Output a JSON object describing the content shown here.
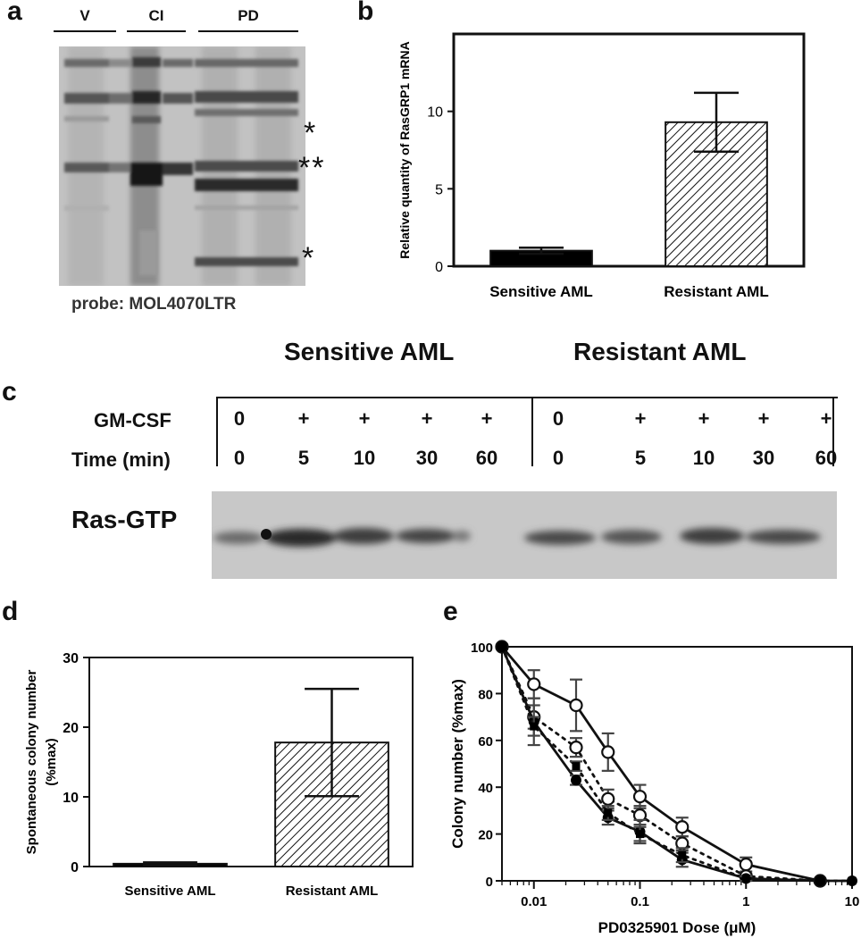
{
  "panels": {
    "a": {
      "letter": "a",
      "lane_groups": [
        "V",
        "CI",
        "PD"
      ],
      "asterisks": [
        "*",
        "**",
        "*"
      ],
      "caption": "probe: MOL4070LTR"
    },
    "c": {
      "letter": "c",
      "group_headers": [
        "Sensitive AML",
        "Resistant AML"
      ],
      "row1_label": "GM-CSF",
      "row1_values": [
        "0",
        "+",
        "+",
        "+",
        "+",
        "0",
        "+",
        "+",
        "+",
        "+"
      ],
      "row2_label": "Time (min)",
      "row2_values": [
        "0",
        "5",
        "10",
        "30",
        "60",
        "0",
        "5",
        "10",
        "30",
        "60"
      ],
      "blot_label": "Ras-GTP"
    }
  },
  "chart_data": [
    {
      "id": "b",
      "letter": "b",
      "type": "bar",
      "categories": [
        "Sensitive AML",
        "Resistant AML"
      ],
      "values": [
        1.0,
        9.3
      ],
      "error_upper": [
        1.2,
        11.2
      ],
      "error_lower": [
        0.8,
        7.4
      ],
      "fills": [
        "solid",
        "hatched"
      ],
      "ylabel": "Relative quantity of RasGRP1 mRNA",
      "ylim": [
        0,
        15
      ],
      "yticks": [
        "0",
        "5",
        "10"
      ],
      "colors": {
        "solid": "#000000",
        "hatch": "#000000"
      }
    },
    {
      "id": "d",
      "letter": "d",
      "type": "bar",
      "categories": [
        "Sensitive AML",
        "Resistant AML"
      ],
      "values": [
        0.4,
        17.8
      ],
      "error_upper": [
        0.6,
        25.5
      ],
      "error_lower": [
        0.2,
        10.1
      ],
      "fills": [
        "solid",
        "hatched"
      ],
      "ylabel": "Spontaneous colony number (%max)",
      "ylim": [
        0,
        30
      ],
      "yticks": [
        "0",
        "10",
        "20",
        "30"
      ]
    },
    {
      "id": "e",
      "letter": "e",
      "type": "line",
      "xscale": "log",
      "xlabel": "PD0325901 Dose (μM)",
      "ylabel": "Colony number (%max)",
      "xlim": [
        0.005,
        10
      ],
      "ylim": [
        0,
        100
      ],
      "xticks": [
        "0.01",
        "0.1",
        "1",
        "10"
      ],
      "yticks": [
        "0",
        "20",
        "40",
        "60",
        "80",
        "100"
      ],
      "series": [
        {
          "marker": "open-circle",
          "line": "solid",
          "x": [
            0.005,
            0.01,
            0.025,
            0.05,
            0.1,
            0.25,
            1,
            5
          ],
          "y": [
            100,
            84,
            75,
            55,
            36,
            23,
            7,
            0
          ],
          "err": [
            0,
            6,
            11,
            8,
            5,
            4,
            3,
            0
          ]
        },
        {
          "marker": "open-circle",
          "line": "dotted",
          "x": [
            0.005,
            0.01,
            0.025,
            0.05,
            0.1,
            0.25,
            1,
            5
          ],
          "y": [
            100,
            70,
            57,
            35,
            28,
            16,
            2,
            0
          ],
          "err": [
            0,
            5,
            4,
            4,
            4,
            3,
            1,
            0
          ]
        },
        {
          "marker": "filled-circle",
          "line": "solid",
          "x": [
            0.005,
            0.01,
            0.025,
            0.05,
            0.1,
            0.25,
            1,
            5,
            10
          ],
          "y": [
            100,
            68,
            43,
            27,
            21,
            9,
            1,
            0,
            0
          ],
          "err": [
            0,
            10,
            2,
            3,
            5,
            3,
            1,
            0,
            0
          ]
        },
        {
          "marker": "filled-square",
          "line": "dotted",
          "x": [
            0.005,
            0.01,
            0.025,
            0.05,
            0.1,
            0.25,
            1,
            5,
            10
          ],
          "y": [
            100,
            66,
            49,
            29,
            20,
            11,
            1,
            0,
            0
          ],
          "err": [
            0,
            4,
            2,
            3,
            3,
            3,
            1,
            0,
            0
          ]
        }
      ]
    }
  ]
}
